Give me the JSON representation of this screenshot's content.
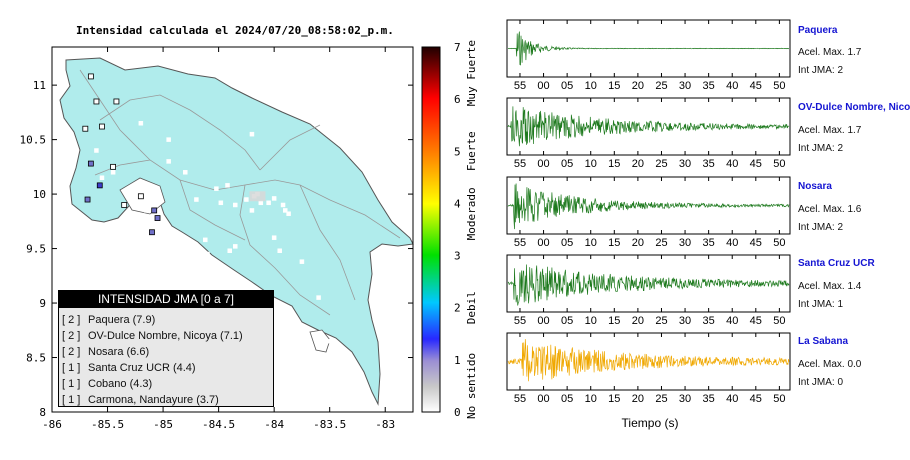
{
  "chart_data": [
    {
      "type": "scatter",
      "title": "Intensidad calculada el 2024/07/20_08:58:02_p.m.",
      "x_ticks": [
        "-86",
        "-85.5",
        "-85",
        "-84.5",
        "-84",
        "-83.5",
        "-83"
      ],
      "y_ticks": [
        "8",
        "8.5",
        "9",
        "9.5",
        "10",
        "10.5",
        "11"
      ],
      "xlim": [
        -86,
        -82.75
      ],
      "ylim": [
        8,
        11.35
      ],
      "colorbar": {
        "ticks": [
          "0",
          "1",
          "2",
          "3",
          "4",
          "5",
          "6",
          "7"
        ],
        "labels": [
          "No sentido",
          "Debil",
          "Moderado",
          "Fuerte",
          "Muy Fuerte"
        ],
        "range": [
          0,
          7
        ]
      },
      "legend": {
        "title": "INTENSIDAD JMA [0 a 7]",
        "items": [
          {
            "level": "[ 2 ]",
            "label": "Paquera (7.9)"
          },
          {
            "level": "[ 2 ]",
            "label": "OV-Dulce Nombre, Nicoya (7.1)"
          },
          {
            "level": "[ 2 ]",
            "label": "Nosara (6.6)"
          },
          {
            "level": "[ 1 ]",
            "label": "Santa Cruz UCR (4.4)"
          },
          {
            "level": "[ 1 ]",
            "label": "Cobano (4.3)"
          },
          {
            "level": "[ 1 ]",
            "label": "Carmona, Nandayure (3.7)"
          }
        ]
      },
      "stations": [
        {
          "x": -85.65,
          "y": 11.08,
          "v": 1
        },
        {
          "x": -85.6,
          "y": 10.85,
          "v": 1
        },
        {
          "x": -85.42,
          "y": 10.85,
          "v": 1
        },
        {
          "x": -85.7,
          "y": 10.6,
          "v": 1
        },
        {
          "x": -85.55,
          "y": 10.62,
          "v": 1
        },
        {
          "x": -85.2,
          "y": 10.65,
          "v": 0
        },
        {
          "x": -85.65,
          "y": 10.28,
          "v": 1.5
        },
        {
          "x": -85.57,
          "y": 10.08,
          "v": 1.6
        },
        {
          "x": -85.55,
          "y": 10.15,
          "v": 0
        },
        {
          "x": -85.45,
          "y": 10.25,
          "v": 1
        },
        {
          "x": -85.6,
          "y": 10.4,
          "v": 0
        },
        {
          "x": -85.68,
          "y": 9.95,
          "v": 1.5
        },
        {
          "x": -85.35,
          "y": 9.9,
          "v": 1
        },
        {
          "x": -85.2,
          "y": 9.98,
          "v": 1
        },
        {
          "x": -85.08,
          "y": 9.85,
          "v": 1.3
        },
        {
          "x": -85.05,
          "y": 9.78,
          "v": 1.5
        },
        {
          "x": -85.1,
          "y": 9.65,
          "v": 1.4
        },
        {
          "x": -85.15,
          "y": 9.85,
          "v": 0
        },
        {
          "x": -85.45,
          "y": 10.2,
          "v": 0
        },
        {
          "x": -84.95,
          "y": 10.5,
          "v": 0
        },
        {
          "x": -84.95,
          "y": 10.3,
          "v": 0
        },
        {
          "x": -84.8,
          "y": 10.2,
          "v": 0
        },
        {
          "x": -84.7,
          "y": 9.95,
          "v": 0
        },
        {
          "x": -84.52,
          "y": 10.05,
          "v": 0
        },
        {
          "x": -84.42,
          "y": 10.08,
          "v": 0
        },
        {
          "x": -84.48,
          "y": 9.92,
          "v": 0
        },
        {
          "x": -84.35,
          "y": 9.9,
          "v": 0
        },
        {
          "x": -84.25,
          "y": 9.95,
          "v": 0
        },
        {
          "x": -84.2,
          "y": 9.85,
          "v": 0
        },
        {
          "x": -84.15,
          "y": 10.0,
          "v": 0
        },
        {
          "x": -84.05,
          "y": 9.92,
          "v": 0
        },
        {
          "x": -84.0,
          "y": 9.96,
          "v": 0
        },
        {
          "x": -83.92,
          "y": 9.9,
          "v": 0
        },
        {
          "x": -83.9,
          "y": 9.85,
          "v": 0
        },
        {
          "x": -83.87,
          "y": 9.82,
          "v": 0
        },
        {
          "x": -84.62,
          "y": 9.58,
          "v": 0
        },
        {
          "x": -84.6,
          "y": 9.45,
          "v": 0
        },
        {
          "x": -84.35,
          "y": 9.52,
          "v": 0
        },
        {
          "x": -84.0,
          "y": 9.6,
          "v": 0
        },
        {
          "x": -83.95,
          "y": 9.48,
          "v": 0
        },
        {
          "x": -84.4,
          "y": 9.48,
          "v": 0
        },
        {
          "x": -84.2,
          "y": 10.55,
          "v": 0
        },
        {
          "x": -83.75,
          "y": 9.38,
          "v": 0
        },
        {
          "x": -83.6,
          "y": 9.05,
          "v": 0
        },
        {
          "x": -83.5,
          "y": 8.65,
          "v": 0
        },
        {
          "x": -82.9,
          "y": 8.05,
          "v": 0
        },
        {
          "x": -84.12,
          "y": 9.92,
          "v": 0
        },
        {
          "x": -84.18,
          "y": 9.98,
          "v": 0
        }
      ]
    },
    {
      "type": "line",
      "xlabel": "Tiempo (s)",
      "x_ticks": [
        "55",
        "00",
        "05",
        "10",
        "15",
        "20",
        "25",
        "30",
        "35",
        "40",
        "45",
        "50"
      ],
      "series": [
        {
          "name": "Paquera",
          "accel": "Acel. Max. 1.7",
          "jma": "Int JMA: 2",
          "color": "#1e7a1e",
          "onset": 0.03,
          "decay": 0.05,
          "amp": 0.9,
          "noise": 0.01
        },
        {
          "name": "OV-Dulce Nombre, Nicoya",
          "accel": "Acel. Max. 1.7",
          "jma": "Int JMA: 2",
          "color": "#1e7a1e",
          "onset": 0.01,
          "decay": 0.3,
          "amp": 0.85,
          "noise": 0.05
        },
        {
          "name": "Nosara",
          "accel": "Acel. Max. 1.6",
          "jma": "Int JMA: 2",
          "color": "#1e7a1e",
          "onset": 0.02,
          "decay": 0.22,
          "amp": 0.9,
          "noise": 0.04
        },
        {
          "name": "Santa Cruz UCR",
          "accel": "Acel. Max. 1.4",
          "jma": "Int JMA: 1",
          "color": "#1e7a1e",
          "onset": 0.02,
          "decay": 0.35,
          "amp": 0.85,
          "noise": 0.06
        },
        {
          "name": "La Sabana",
          "accel": "Acel. Max. 0.0",
          "jma": "Int JMA: 0",
          "color": "#f0a800",
          "onset": 0.05,
          "decay": 0.3,
          "amp": 0.85,
          "noise": 0.1
        }
      ]
    }
  ]
}
